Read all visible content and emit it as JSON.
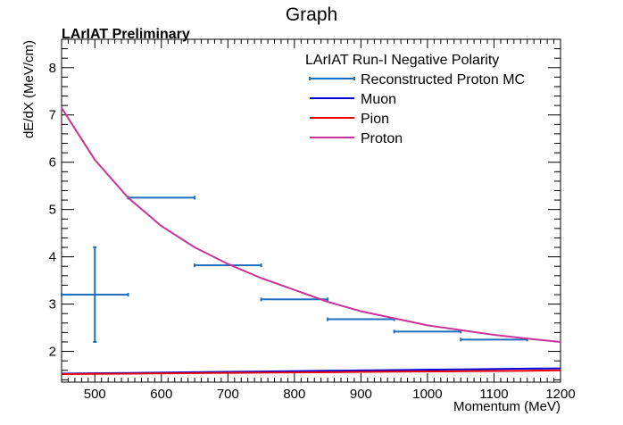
{
  "chart_data": {
    "type": "line",
    "title": "Graph",
    "annotation": "LArIAT Preliminary",
    "xlabel": "Momentum (MeV)",
    "ylabel": "dE/dX (MeV/cm)",
    "xlim": [
      450,
      1200
    ],
    "ylim": [
      1.35,
      8.6
    ],
    "xticks": [
      "500",
      "600",
      "700",
      "800",
      "900",
      "1000",
      "1100",
      "1200"
    ],
    "yticks": [
      "2",
      "3",
      "4",
      "5",
      "6",
      "7",
      "8"
    ],
    "legend_title": "LArIAT Run-I Negative Polarity",
    "legend_position": "top-right",
    "series": [
      {
        "name": "Reconstructed Proton MC",
        "kind": "errorbar",
        "color": "#1f6fbf",
        "points": [
          {
            "x": 500,
            "y": 3.2,
            "xerr": 50,
            "yerr": 1.0
          },
          {
            "x": 600,
            "y": 5.25,
            "xerr": 50,
            "yerr": 0
          },
          {
            "x": 700,
            "y": 3.82,
            "xerr": 50,
            "yerr": 0
          },
          {
            "x": 800,
            "y": 3.1,
            "xerr": 50,
            "yerr": 0
          },
          {
            "x": 900,
            "y": 2.68,
            "xerr": 50,
            "yerr": 0
          },
          {
            "x": 1000,
            "y": 2.42,
            "xerr": 50,
            "yerr": 0
          },
          {
            "x": 1100,
            "y": 2.25,
            "xerr": 50,
            "yerr": 0
          }
        ]
      },
      {
        "name": "Muon",
        "kind": "line",
        "color": "#0000dd",
        "x": [
          450,
          550,
          650,
          750,
          850,
          950,
          1050,
          1150,
          1200
        ],
        "y": [
          1.53,
          1.545,
          1.56,
          1.575,
          1.59,
          1.605,
          1.62,
          1.635,
          1.64
        ]
      },
      {
        "name": "Pion",
        "kind": "line",
        "color": "#ee0000",
        "x": [
          450,
          550,
          650,
          750,
          850,
          950,
          1050,
          1150,
          1200
        ],
        "y": [
          1.52,
          1.53,
          1.54,
          1.55,
          1.56,
          1.57,
          1.58,
          1.59,
          1.6
        ]
      },
      {
        "name": "Proton",
        "kind": "line",
        "color": "#cc3399",
        "x": [
          450,
          500,
          550,
          600,
          650,
          700,
          750,
          800,
          850,
          900,
          950,
          1000,
          1050,
          1100,
          1150,
          1200
        ],
        "y": [
          7.15,
          6.05,
          5.25,
          4.65,
          4.2,
          3.85,
          3.55,
          3.3,
          3.05,
          2.85,
          2.7,
          2.55,
          2.45,
          2.35,
          2.27,
          2.2
        ]
      }
    ]
  }
}
